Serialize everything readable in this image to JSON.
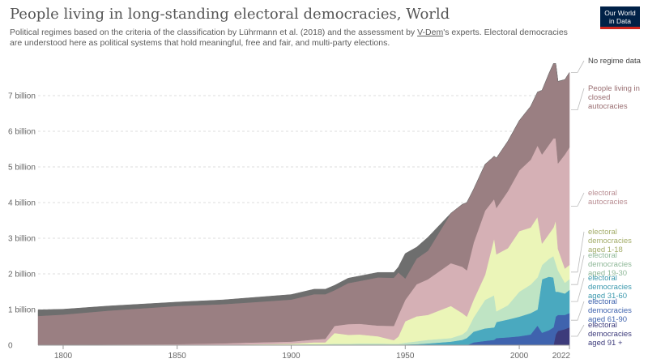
{
  "header": {
    "title": "People living in long-standing electoral democracies, World",
    "subtitle_pre": "Political regimes based on the criteria of the classification by Lührmann et al. (2018) and the assessment by ",
    "subtitle_link": "V-Dem",
    "subtitle_post": "'s experts. Electoral democracies are understood here as political systems that hold meaningful, free and fair, and multi-party elections.",
    "logo_line1": "Our World",
    "logo_line2": "in Data"
  },
  "colors": {
    "brand": "#002147",
    "brand_accent": "#ce261e"
  },
  "chart_data": {
    "type": "area",
    "stacked": true,
    "title": "People living in long-standing electoral democracies, World",
    "xlim": [
      1789,
      2022
    ],
    "ylim": [
      0,
      8
    ],
    "x_ticks": [
      1800,
      1850,
      1900,
      1950,
      2000,
      2022
    ],
    "x_tick_labels": [
      "1800",
      "1850",
      "1900",
      "1950",
      "2000",
      "2022"
    ],
    "y_ticks": [
      0,
      1,
      2,
      3,
      4,
      5,
      6,
      7
    ],
    "y_tick_labels": [
      "0",
      "1 billion",
      "2 billion",
      "3 billion",
      "4 billion",
      "5 billion",
      "6 billion",
      "7 billion"
    ],
    "grid": true,
    "legend_placement": "right",
    "x": [
      1789,
      1800,
      1820,
      1850,
      1870,
      1880,
      1900,
      1910,
      1915,
      1919,
      1925,
      1930,
      1938,
      1945,
      1947,
      1950,
      1955,
      1960,
      1970,
      1975,
      1977,
      1980,
      1985,
      1989,
      1990,
      1995,
      2000,
      2005,
      2008,
      2010,
      2013,
      2015,
      2016,
      2017,
      2020,
      2022
    ],
    "series": [
      {
        "name": "electoral democracies aged 91 +",
        "color": "#3d3b7b",
        "values": [
          0,
          0,
          0,
          0,
          0,
          0,
          0,
          0,
          0,
          0,
          0,
          0,
          0,
          0,
          0,
          0,
          0,
          0,
          0,
          0,
          0,
          0,
          0,
          0,
          0,
          0,
          0,
          0,
          0,
          0,
          0,
          0,
          0.3,
          0.4,
          0.45,
          0.5
        ]
      },
      {
        "name": "electoral democracies aged 61-90",
        "color": "#3f63ae",
        "values": [
          0,
          0,
          0,
          0,
          0,
          0,
          0,
          0,
          0,
          0,
          0,
          0,
          0,
          0,
          0,
          0,
          0,
          0,
          0,
          0,
          0,
          0.08,
          0.12,
          0.15,
          0.2,
          0.22,
          0.25,
          0.3,
          0.55,
          0.35,
          0.42,
          0.5,
          0.5,
          0.45,
          0.4,
          0.4
        ]
      },
      {
        "name": "electoral democracies aged 31-60",
        "color": "#4aa9bf",
        "values": [
          0,
          0,
          0,
          0,
          0,
          0,
          0,
          0,
          0,
          0,
          0,
          0,
          0,
          0,
          0,
          0.02,
          0.03,
          0.05,
          0.1,
          0.15,
          0.2,
          0.3,
          0.35,
          0.35,
          0.45,
          0.5,
          0.55,
          0.6,
          0.45,
          1.5,
          1.5,
          1.4,
          0.7,
          0.65,
          0.6,
          0.65
        ]
      },
      {
        "name": "electoral democracies aged 19-30",
        "color": "#bfe4c4",
        "values": [
          0,
          0,
          0,
          0,
          0.01,
          0.02,
          0.02,
          0.03,
          0.03,
          0.04,
          0.04,
          0.05,
          0.05,
          0.04,
          0.04,
          0.05,
          0.08,
          0.1,
          0.1,
          0.15,
          0.2,
          0.4,
          0.8,
          0.9,
          0.3,
          0.4,
          0.7,
          0.8,
          0.9,
          0.4,
          0.5,
          0.6,
          0.8,
          0.6,
          0.3,
          0.3
        ]
      },
      {
        "name": "electoral democracies aged 1-18",
        "color": "#ebf5b8",
        "values": [
          0,
          0,
          0,
          0,
          0,
          0,
          0.02,
          0.05,
          0.05,
          0.3,
          0.25,
          0.25,
          0.2,
          0.1,
          0.2,
          0.6,
          0.7,
          0.7,
          0.9,
          0.6,
          0.4,
          0.5,
          0.7,
          1.6,
          1.6,
          1.6,
          1.7,
          1.6,
          1.7,
          0.6,
          0.7,
          0.8,
          1.2,
          0.6,
          0.4,
          0.4
        ]
      },
      {
        "name": "electoral autocracies",
        "color": "#d5b0b5",
        "values": [
          0,
          0.01,
          0.02,
          0.03,
          0.04,
          0.05,
          0.06,
          0.08,
          0.1,
          0.2,
          0.3,
          0.3,
          0.3,
          0.4,
          0.6,
          0.6,
          0.9,
          1,
          1.2,
          1.3,
          1.3,
          1.6,
          1.8,
          1.1,
          1.3,
          1.6,
          1.7,
          1.9,
          2,
          2.5,
          2.5,
          2.5,
          2.3,
          2.4,
          3.2,
          3.3
        ]
      },
      {
        "name": "People living in closed autocracies",
        "color": "#9a7f82",
        "values": [
          0.82,
          0.85,
          0.95,
          1.07,
          1.1,
          1.12,
          1.18,
          1.27,
          1.25,
          1,
          1.15,
          1.2,
          1.35,
          1.35,
          1.2,
          0.6,
          0.72,
          0.8,
          1.4,
          1.75,
          1.9,
          1.5,
          1.3,
          1.2,
          1.4,
          1.4,
          1.4,
          1.5,
          1.5,
          1.8,
          2,
          2.1,
          2.1,
          2.3,
          2.1,
          2.1
        ]
      },
      {
        "name": "No regime data",
        "color": "#6e6e6e",
        "values": [
          0.17,
          0.15,
          0.13,
          0.11,
          0.12,
          0.13,
          0.14,
          0.14,
          0.14,
          0.14,
          0.14,
          0.14,
          0.14,
          0.15,
          0.15,
          0.7,
          0.32,
          0.38,
          0,
          0,
          0,
          0,
          0,
          0,
          0,
          0,
          0,
          0,
          0,
          0,
          0,
          0,
          0,
          0,
          0,
          0
        ]
      }
    ]
  }
}
